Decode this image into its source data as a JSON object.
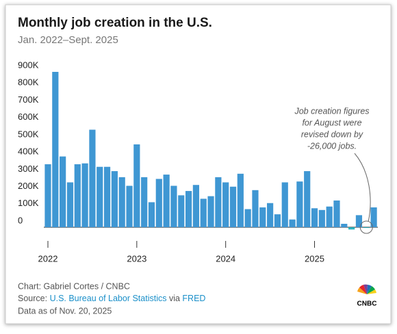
{
  "chart_data": {
    "type": "bar",
    "title": "Monthly job creation in the U.S.",
    "subtitle": "Jan. 2022–Sept. 2025",
    "categories": [
      "2022",
      null,
      null,
      null,
      null,
      null,
      null,
      null,
      null,
      null,
      null,
      null,
      "2023",
      null,
      null,
      null,
      null,
      null,
      null,
      null,
      null,
      null,
      null,
      null,
      "2024",
      null,
      null,
      null,
      null,
      null,
      null,
      null,
      null,
      null,
      null,
      null,
      "2025",
      null,
      null,
      null,
      null,
      null,
      null,
      null,
      null
    ],
    "values": [
      365000,
      900000,
      410000,
      260000,
      365000,
      370000,
      565000,
      350000,
      350000,
      325000,
      290000,
      240000,
      480000,
      290000,
      145000,
      280000,
      305000,
      240000,
      185000,
      210000,
      245000,
      165000,
      180000,
      290000,
      260000,
      235000,
      310000,
      105000,
      215000,
      115000,
      140000,
      75000,
      260000,
      45000,
      265000,
      325000,
      110000,
      100000,
      120000,
      155000,
      20000,
      -13000,
      70000,
      -4000,
      115000
    ],
    "color": "#3f97d3",
    "negative_color": "#2bb3c0",
    "ylim": [
      -30000,
      900000
    ],
    "yticks": [
      {
        "value": 0,
        "label": "0"
      },
      {
        "value": 100000,
        "label": "100K"
      },
      {
        "value": 200000,
        "label": "200K"
      },
      {
        "value": 300000,
        "label": "300K"
      },
      {
        "value": 400000,
        "label": "400K"
      },
      {
        "value": 500000,
        "label": "500K"
      },
      {
        "value": 600000,
        "label": "600K"
      },
      {
        "value": 700000,
        "label": "700K"
      },
      {
        "value": 800000,
        "label": "800K"
      },
      {
        "value": 900000,
        "label": "900K"
      }
    ],
    "annotation": [
      "Job creation figures",
      "for August were",
      "revised down by",
      "-26,000 jobs."
    ],
    "footer": {
      "credit": "Chart: Gabriel Cortes / CNBC",
      "source_prefix": "Source: ",
      "source_link": "U.S. Bureau of Labor Statistics",
      "source_mid": " via ",
      "source_link2": "FRED",
      "date": "Data as of Nov. 20, 2025"
    },
    "logo": "CNBC"
  }
}
